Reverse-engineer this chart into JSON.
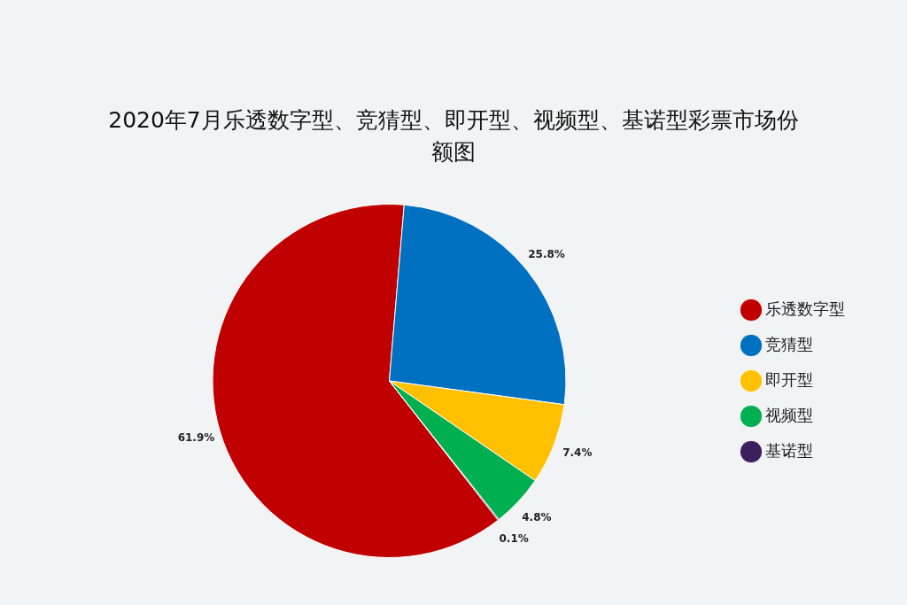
{
  "chart_data": {
    "type": "pie",
    "title": "2020年7月乐透数字型、竞猜型、即开型、视频型、基诺型彩票市场份额图",
    "categories": [
      "乐透数字型",
      "竞猜型",
      "即开型",
      "视频型",
      "基诺型"
    ],
    "values": [
      61.9,
      25.8,
      7.4,
      4.8,
      0.1
    ],
    "colors": [
      "#c00000",
      "#0070c0",
      "#ffc000",
      "#00b050",
      "#3b1f5e"
    ],
    "value_labels": [
      "61.9%",
      "25.8%",
      "7.4%",
      "4.8%",
      "0.1%"
    ],
    "legend": "right"
  }
}
